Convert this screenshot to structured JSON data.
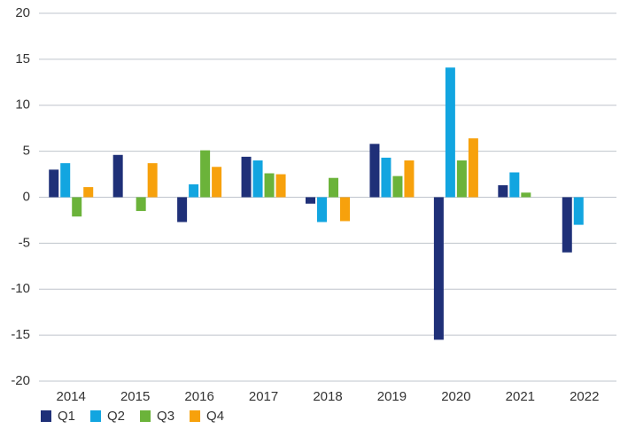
{
  "chart_data": {
    "type": "bar",
    "categories": [
      "2014",
      "2015",
      "2016",
      "2017",
      "2018",
      "2019",
      "2020",
      "2021",
      "2022"
    ],
    "series": [
      {
        "name": "Q1",
        "color": "#1f3078",
        "values": [
          3.0,
          4.6,
          -2.7,
          4.4,
          -0.7,
          5.8,
          -15.5,
          1.3,
          -6.0
        ]
      },
      {
        "name": "Q2",
        "color": "#12a5e0",
        "values": [
          3.7,
          null,
          1.4,
          4.0,
          -2.7,
          4.3,
          14.1,
          2.7,
          -3.0
        ]
      },
      {
        "name": "Q3",
        "color": "#6bb33a",
        "values": [
          -2.1,
          -1.5,
          5.1,
          2.6,
          2.1,
          2.3,
          4.0,
          0.5,
          null
        ]
      },
      {
        "name": "Q4",
        "color": "#f7a10c",
        "values": [
          1.1,
          3.7,
          3.3,
          2.5,
          -2.6,
          4.0,
          6.4,
          null,
          null
        ]
      }
    ],
    "ylim": [
      -20,
      20
    ],
    "yticks": [
      -20,
      -15,
      -10,
      -5,
      0,
      5,
      10,
      15,
      20
    ],
    "grid": true,
    "legend": "bottom-left"
  }
}
